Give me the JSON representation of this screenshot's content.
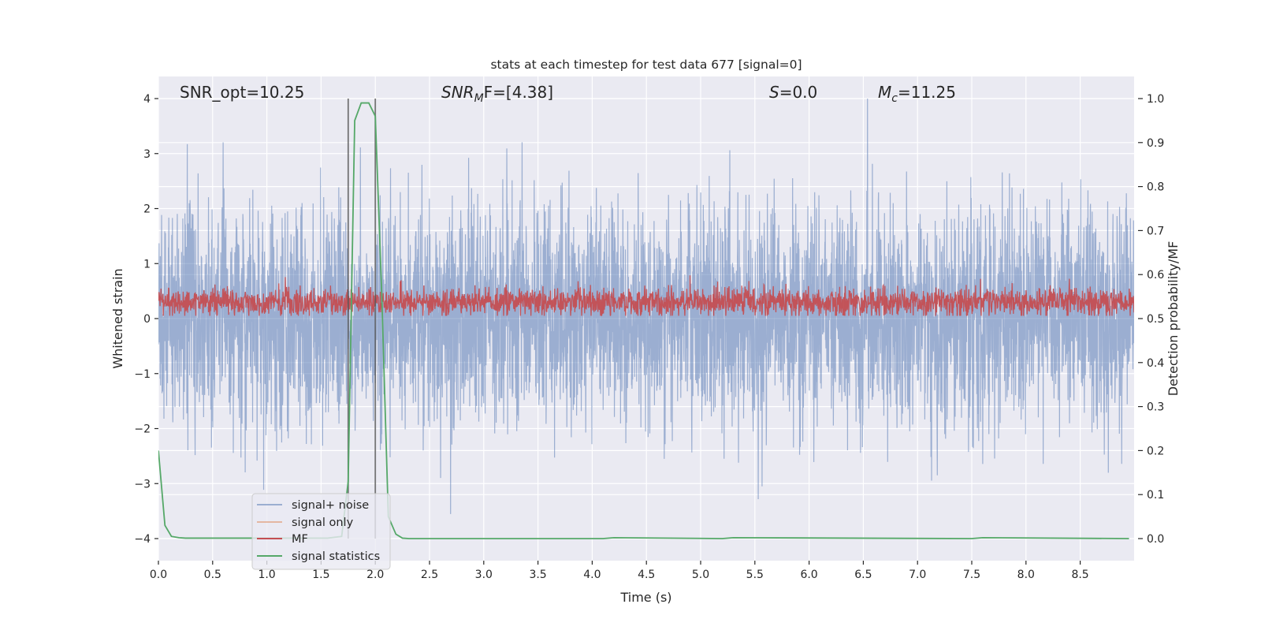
{
  "chart_data": {
    "type": "line",
    "title": "stats at each timestep for test data 677 [signal=0]",
    "xlabel": "Time (s)",
    "ylabel": "Whitened strain",
    "ylabel_right": "Detection probability/MF",
    "xlim": [
      0,
      9.0
    ],
    "ylim": [
      -4.4,
      4.4
    ],
    "ylim_right": [
      -0.05,
      1.05
    ],
    "xticks": [
      "0.0",
      "0.5",
      "1.0",
      "1.5",
      "2.0",
      "2.5",
      "3.0",
      "3.5",
      "4.0",
      "4.5",
      "5.0",
      "5.5",
      "6.0",
      "6.5",
      "7.0",
      "7.5",
      "8.0",
      "8.5"
    ],
    "yticks": [
      "4",
      "3",
      "2",
      "1",
      "0",
      "−1",
      "−2",
      "−3",
      "−4"
    ],
    "yticks_right": [
      "1.0",
      "0.9",
      "0.8",
      "0.7",
      "0.6",
      "0.5",
      "0.4",
      "0.3",
      "0.2",
      "0.1",
      "0.0"
    ],
    "grid": true,
    "annotations": {
      "snr_opt": "SNR_opt=10.25",
      "snr_mf_base": "SNR",
      "snr_mf_sub": "M",
      "snr_mf_rest": "F=[4.38]",
      "s_label": "S",
      "s_rest": "=0.0",
      "mc_base": "M",
      "mc_sub": "c",
      "mc_rest": "=11.25"
    },
    "vertical_lines": [
      1.75,
      2.0
    ],
    "legend": {
      "placement": "lower-left",
      "entries": [
        "signal+ noise",
        "signal only",
        "MF",
        "signal statistics"
      ]
    },
    "series": [
      {
        "name": "signal+ noise",
        "axis": "left",
        "color": "#4c72b0",
        "kind": "noise",
        "n_samples": 4600,
        "mean": 0.0,
        "std": 1.0,
        "clip": 4.0,
        "seed": 677
      },
      {
        "name": "signal only",
        "axis": "left",
        "color": "#dd8452",
        "values": []
      },
      {
        "name": "MF",
        "axis": "left",
        "color": "#c44e52",
        "kind": "noise",
        "n_samples": 3000,
        "mean": 0.3,
        "std": 0.13,
        "clip_low": 0.05,
        "clip_high": 0.95,
        "seed": 42
      },
      {
        "name": "signal statistics",
        "axis": "right",
        "color": "#55a868",
        "x": [
          0.0,
          0.06,
          0.12,
          0.19,
          0.25,
          1.56,
          1.69,
          1.75,
          1.81,
          1.87,
          1.94,
          2.0,
          2.06,
          2.12,
          2.19,
          2.25,
          2.31,
          4.1,
          4.2,
          5.2,
          5.3,
          7.5,
          7.6,
          8.95
        ],
        "y": [
          0.2,
          0.03,
          0.005,
          0.002,
          0.001,
          0.001,
          0.005,
          0.13,
          0.95,
          0.99,
          0.99,
          0.96,
          0.55,
          0.05,
          0.01,
          0.001,
          0.0,
          0.0,
          0.002,
          0.0,
          0.002,
          0.0,
          0.002,
          0.0
        ]
      }
    ]
  }
}
